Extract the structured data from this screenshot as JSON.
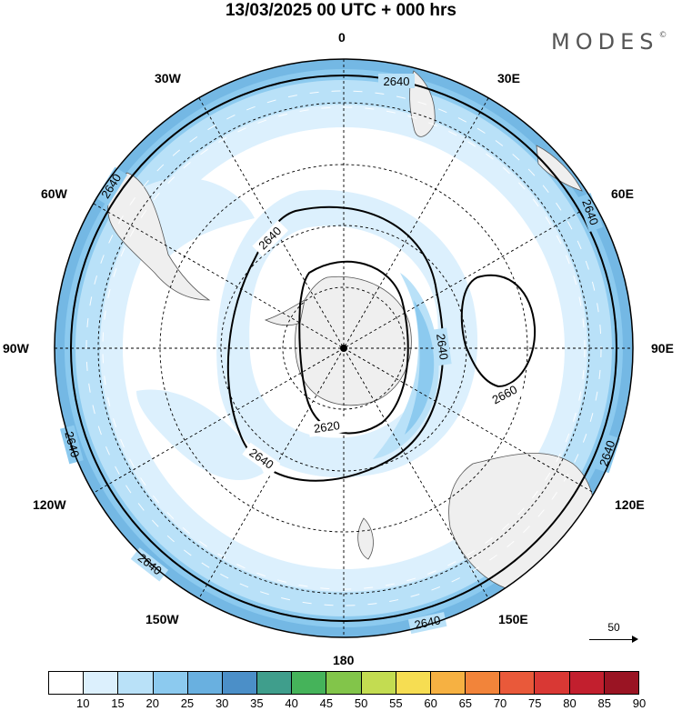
{
  "title": "13/03/2025  00 UTC  + 000 hrs",
  "logo": "MODES",
  "logo_mark": "©",
  "longitudes": {
    "top": "0",
    "top_left": "30W",
    "top_right": "30E",
    "upper_left": "60W",
    "upper_right": "60E",
    "left": "90W",
    "right": "90E",
    "lower_left": "120W",
    "lower_right": "120E",
    "bottom_left": "150W",
    "bottom_right": "150E",
    "bottom": "180"
  },
  "contour_labels": [
    "2640",
    "2640",
    "2640",
    "2640",
    "2640",
    "2640",
    "2640",
    "2640",
    "2640",
    "2620",
    "2660",
    "2640"
  ],
  "colorbar": {
    "ticks": [
      "10",
      "15",
      "20",
      "25",
      "30",
      "35",
      "40",
      "45",
      "50",
      "55",
      "60",
      "65",
      "70",
      "75",
      "80",
      "85",
      "90"
    ],
    "colors": [
      "#ffffff",
      "#dcf0fd",
      "#b9e1f8",
      "#8ccaef",
      "#69b0e0",
      "#4b8fc8",
      "#3f9e8c",
      "#45b35a",
      "#82c54a",
      "#c3dc51",
      "#f6dd52",
      "#f6b142",
      "#f2843a",
      "#e9593a",
      "#d93834",
      "#c21f2e",
      "#9a1423"
    ]
  },
  "wind_scale": {
    "value": "50"
  },
  "colors": {
    "land": "#efefef",
    "speed_15": "#dcf0fd",
    "speed_20": "#b9e1f8",
    "speed_25": "#8ccaef",
    "speed_30": "#69b0e0"
  }
}
